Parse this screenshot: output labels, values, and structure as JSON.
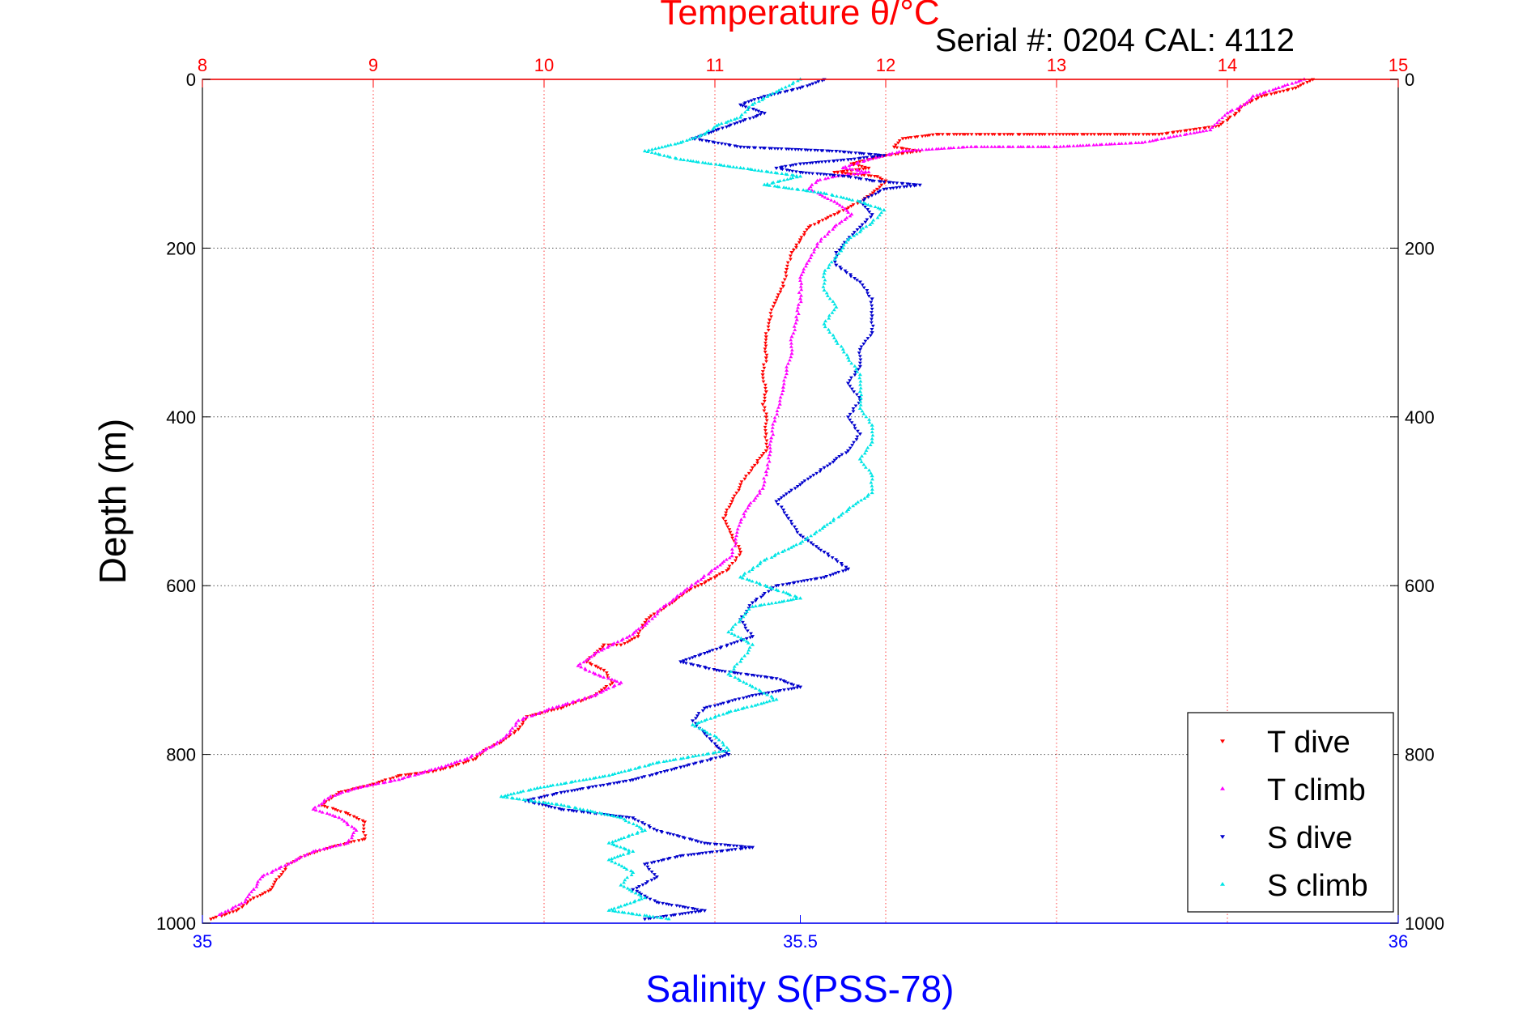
{
  "chart_data": {
    "type": "scatter",
    "title": "Temperature θ/°C",
    "subtitle": "Serial #: 0204  CAL: 4112",
    "ylabel": "Depth (m)",
    "xlabel_bottom": "Salinity S(PSS-78)",
    "xlabel_top": "",
    "depth_range": [
      1000,
      0
    ],
    "temperature_range": [
      8,
      15
    ],
    "salinity_range": [
      35,
      36
    ],
    "depth_ticks": [
      "0",
      "200",
      "400",
      "600",
      "800",
      "1000"
    ],
    "temperature_ticks": [
      "8",
      "9",
      "10",
      "11",
      "12",
      "13",
      "14",
      "15"
    ],
    "salinity_ticks": [
      "35",
      "35.5",
      "36"
    ],
    "grid": true,
    "legend_position": "bottom-right",
    "colors": {
      "title": "#ff0000",
      "temperature_axis": "#ff0000",
      "salinity_axis": "#0000ff",
      "t_dive": "#ff0000",
      "t_climb": "#ff00ff",
      "s_dive": "#0000cc",
      "s_climb": "#00e5e5"
    },
    "series": [
      {
        "name": "T dive",
        "axis": "temperature",
        "marker": "triangle-down",
        "points": [
          [
            14.5,
            0
          ],
          [
            14.4,
            10
          ],
          [
            14.2,
            20
          ],
          [
            14.1,
            30
          ],
          [
            14.05,
            40
          ],
          [
            13.95,
            55
          ],
          [
            13.6,
            65
          ],
          [
            12.9,
            65
          ],
          [
            12.3,
            65
          ],
          [
            12.1,
            70
          ],
          [
            12.05,
            80
          ],
          [
            12.2,
            85
          ],
          [
            12.0,
            90
          ],
          [
            11.8,
            100
          ],
          [
            11.9,
            105
          ],
          [
            11.7,
            110
          ],
          [
            11.95,
            115
          ],
          [
            12.0,
            120
          ],
          [
            11.95,
            130
          ],
          [
            11.85,
            145
          ],
          [
            11.7,
            160
          ],
          [
            11.55,
            175
          ],
          [
            11.5,
            190
          ],
          [
            11.45,
            205
          ],
          [
            11.42,
            225
          ],
          [
            11.4,
            245
          ],
          [
            11.35,
            265
          ],
          [
            11.32,
            285
          ],
          [
            11.3,
            305
          ],
          [
            11.3,
            330
          ],
          [
            11.28,
            350
          ],
          [
            11.3,
            370
          ],
          [
            11.28,
            385
          ],
          [
            11.3,
            400
          ],
          [
            11.3,
            420
          ],
          [
            11.3,
            440
          ],
          [
            11.22,
            460
          ],
          [
            11.15,
            480
          ],
          [
            11.1,
            500
          ],
          [
            11.05,
            520
          ],
          [
            11.1,
            540
          ],
          [
            11.15,
            560
          ],
          [
            11.08,
            580
          ],
          [
            11.0,
            590
          ],
          [
            10.85,
            605
          ],
          [
            10.75,
            620
          ],
          [
            10.6,
            640
          ],
          [
            10.55,
            660
          ],
          [
            10.45,
            670
          ],
          [
            10.35,
            670
          ],
          [
            10.3,
            680
          ],
          [
            10.25,
            690
          ],
          [
            10.35,
            700
          ],
          [
            10.4,
            715
          ],
          [
            10.3,
            730
          ],
          [
            10.1,
            745
          ],
          [
            9.9,
            755
          ],
          [
            9.85,
            770
          ],
          [
            9.75,
            785
          ],
          [
            9.65,
            795
          ],
          [
            9.6,
            805
          ],
          [
            9.45,
            815
          ],
          [
            9.35,
            820
          ],
          [
            9.15,
            825
          ],
          [
            9.0,
            835
          ],
          [
            8.8,
            845
          ],
          [
            8.7,
            860
          ],
          [
            8.85,
            870
          ],
          [
            8.95,
            880
          ],
          [
            8.95,
            900
          ],
          [
            8.75,
            910
          ],
          [
            8.6,
            920
          ],
          [
            8.5,
            930
          ],
          [
            8.45,
            945
          ],
          [
            8.4,
            960
          ],
          [
            8.3,
            970
          ],
          [
            8.2,
            985
          ],
          [
            8.05,
            995
          ]
        ]
      },
      {
        "name": "T climb",
        "axis": "temperature",
        "marker": "triangle-up",
        "points": [
          [
            14.45,
            0
          ],
          [
            14.3,
            10
          ],
          [
            14.15,
            20
          ],
          [
            14.1,
            30
          ],
          [
            14.0,
            40
          ],
          [
            13.9,
            60
          ],
          [
            13.5,
            75
          ],
          [
            13.0,
            80
          ],
          [
            12.5,
            80
          ],
          [
            12.1,
            85
          ],
          [
            11.9,
            95
          ],
          [
            11.75,
            105
          ],
          [
            11.9,
            110
          ],
          [
            11.7,
            115
          ],
          [
            11.6,
            120
          ],
          [
            11.55,
            130
          ],
          [
            11.7,
            145
          ],
          [
            11.8,
            160
          ],
          [
            11.7,
            175
          ],
          [
            11.6,
            195
          ],
          [
            11.55,
            215
          ],
          [
            11.5,
            235
          ],
          [
            11.5,
            260
          ],
          [
            11.48,
            285
          ],
          [
            11.45,
            305
          ],
          [
            11.45,
            325
          ],
          [
            11.42,
            345
          ],
          [
            11.4,
            365
          ],
          [
            11.38,
            385
          ],
          [
            11.35,
            405
          ],
          [
            11.33,
            425
          ],
          [
            11.32,
            445
          ],
          [
            11.3,
            465
          ],
          [
            11.28,
            485
          ],
          [
            11.2,
            505
          ],
          [
            11.15,
            525
          ],
          [
            11.12,
            545
          ],
          [
            11.1,
            565
          ],
          [
            11.0,
            580
          ],
          [
            10.9,
            595
          ],
          [
            10.8,
            610
          ],
          [
            10.7,
            625
          ],
          [
            10.6,
            645
          ],
          [
            10.5,
            660
          ],
          [
            10.4,
            670
          ],
          [
            10.3,
            680
          ],
          [
            10.2,
            695
          ],
          [
            10.3,
            705
          ],
          [
            10.45,
            715
          ],
          [
            10.3,
            730
          ],
          [
            10.05,
            745
          ],
          [
            9.85,
            760
          ],
          [
            9.8,
            775
          ],
          [
            9.7,
            790
          ],
          [
            9.55,
            805
          ],
          [
            9.4,
            815
          ],
          [
            9.15,
            830
          ],
          [
            8.9,
            840
          ],
          [
            8.75,
            850
          ],
          [
            8.65,
            865
          ],
          [
            8.8,
            875
          ],
          [
            8.9,
            890
          ],
          [
            8.85,
            905
          ],
          [
            8.65,
            915
          ],
          [
            8.55,
            925
          ],
          [
            8.45,
            935
          ],
          [
            8.35,
            945
          ],
          [
            8.3,
            960
          ],
          [
            8.25,
            975
          ],
          [
            8.1,
            990
          ]
        ]
      },
      {
        "name": "S dive",
        "axis": "salinity",
        "marker": "triangle-down",
        "points": [
          [
            35.52,
            0
          ],
          [
            35.5,
            10
          ],
          [
            35.47,
            20
          ],
          [
            35.45,
            30
          ],
          [
            35.47,
            40
          ],
          [
            35.45,
            50
          ],
          [
            35.43,
            60
          ],
          [
            35.41,
            70
          ],
          [
            35.45,
            80
          ],
          [
            35.53,
            85
          ],
          [
            35.57,
            90
          ],
          [
            35.54,
            95
          ],
          [
            35.5,
            100
          ],
          [
            35.48,
            105
          ],
          [
            35.5,
            110
          ],
          [
            35.54,
            115
          ],
          [
            35.56,
            120
          ],
          [
            35.6,
            125
          ],
          [
            35.57,
            130
          ],
          [
            35.55,
            145
          ],
          [
            35.56,
            160
          ],
          [
            35.55,
            175
          ],
          [
            35.54,
            190
          ],
          [
            35.53,
            205
          ],
          [
            35.53,
            220
          ],
          [
            35.55,
            240
          ],
          [
            35.56,
            260
          ],
          [
            35.56,
            280
          ],
          [
            35.56,
            300
          ],
          [
            35.55,
            320
          ],
          [
            35.55,
            340
          ],
          [
            35.54,
            360
          ],
          [
            35.55,
            380
          ],
          [
            35.54,
            400
          ],
          [
            35.55,
            420
          ],
          [
            35.54,
            440
          ],
          [
            35.52,
            460
          ],
          [
            35.5,
            480
          ],
          [
            35.48,
            500
          ],
          [
            35.49,
            520
          ],
          [
            35.5,
            540
          ],
          [
            35.52,
            560
          ],
          [
            35.54,
            580
          ],
          [
            35.52,
            590
          ],
          [
            35.48,
            600
          ],
          [
            35.46,
            620
          ],
          [
            35.45,
            640
          ],
          [
            35.46,
            660
          ],
          [
            35.42,
            680
          ],
          [
            35.4,
            690
          ],
          [
            35.43,
            700
          ],
          [
            35.48,
            710
          ],
          [
            35.5,
            720
          ],
          [
            35.46,
            730
          ],
          [
            35.42,
            745
          ],
          [
            35.41,
            760
          ],
          [
            35.42,
            775
          ],
          [
            35.43,
            790
          ],
          [
            35.44,
            800
          ],
          [
            35.4,
            815
          ],
          [
            35.36,
            830
          ],
          [
            35.3,
            845
          ],
          [
            35.27,
            855
          ],
          [
            35.3,
            865
          ],
          [
            35.36,
            875
          ],
          [
            35.38,
            890
          ],
          [
            35.42,
            905
          ],
          [
            35.46,
            910
          ],
          [
            35.4,
            920
          ],
          [
            35.37,
            930
          ],
          [
            35.38,
            945
          ],
          [
            35.36,
            960
          ],
          [
            35.38,
            975
          ],
          [
            35.42,
            985
          ],
          [
            35.37,
            995
          ]
        ]
      },
      {
        "name": "S climb",
        "axis": "salinity",
        "marker": "triangle-up",
        "points": [
          [
            35.5,
            0
          ],
          [
            35.48,
            15
          ],
          [
            35.46,
            30
          ],
          [
            35.45,
            45
          ],
          [
            35.43,
            55
          ],
          [
            35.42,
            65
          ],
          [
            35.4,
            75
          ],
          [
            35.37,
            85
          ],
          [
            35.4,
            95
          ],
          [
            35.45,
            105
          ],
          [
            35.5,
            115
          ],
          [
            35.47,
            125
          ],
          [
            35.52,
            135
          ],
          [
            35.55,
            145
          ],
          [
            35.57,
            155
          ],
          [
            35.56,
            170
          ],
          [
            35.54,
            190
          ],
          [
            35.53,
            210
          ],
          [
            35.52,
            230
          ],
          [
            35.52,
            250
          ],
          [
            35.53,
            270
          ],
          [
            35.52,
            290
          ],
          [
            35.53,
            310
          ],
          [
            35.54,
            330
          ],
          [
            35.55,
            350
          ],
          [
            35.55,
            370
          ],
          [
            35.55,
            390
          ],
          [
            35.56,
            410
          ],
          [
            35.56,
            430
          ],
          [
            35.55,
            450
          ],
          [
            35.56,
            470
          ],
          [
            35.56,
            490
          ],
          [
            35.54,
            510
          ],
          [
            35.52,
            530
          ],
          [
            35.5,
            550
          ],
          [
            35.47,
            570
          ],
          [
            35.45,
            590
          ],
          [
            35.48,
            605
          ],
          [
            35.5,
            615
          ],
          [
            35.46,
            625
          ],
          [
            35.45,
            640
          ],
          [
            35.44,
            655
          ],
          [
            35.46,
            670
          ],
          [
            35.45,
            690
          ],
          [
            35.44,
            705
          ],
          [
            35.46,
            720
          ],
          [
            35.48,
            735
          ],
          [
            35.44,
            750
          ],
          [
            35.41,
            765
          ],
          [
            35.43,
            780
          ],
          [
            35.44,
            795
          ],
          [
            35.38,
            810
          ],
          [
            35.34,
            825
          ],
          [
            35.28,
            840
          ],
          [
            35.25,
            850
          ],
          [
            35.3,
            860
          ],
          [
            35.35,
            875
          ],
          [
            35.37,
            890
          ],
          [
            35.34,
            905
          ],
          [
            35.36,
            915
          ],
          [
            35.34,
            925
          ],
          [
            35.36,
            940
          ],
          [
            35.35,
            955
          ],
          [
            35.37,
            970
          ],
          [
            35.34,
            985
          ],
          [
            35.39,
            995
          ]
        ]
      }
    ]
  }
}
